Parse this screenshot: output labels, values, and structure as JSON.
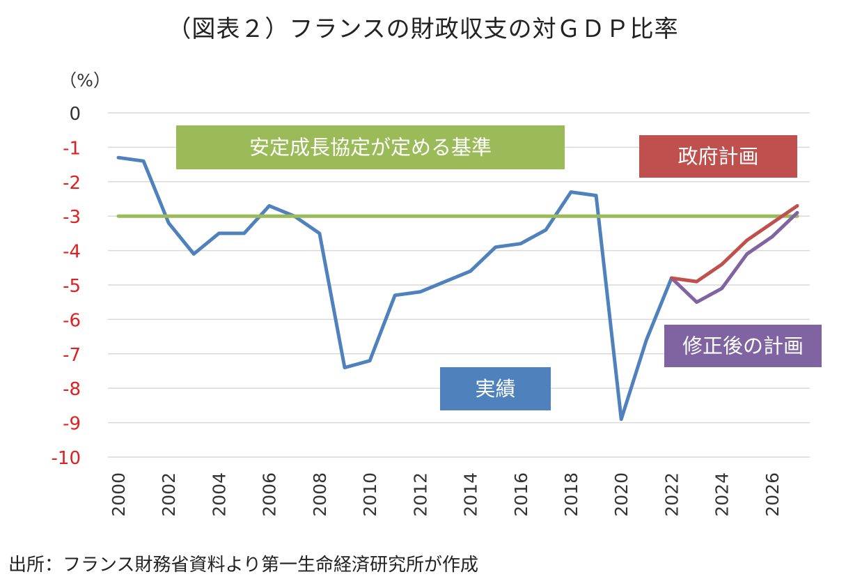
{
  "title": "（図表２）フランスの財政収支の対ＧＤＰ比率",
  "source": "出所：フランス財務省資料より第一生命経済研究所が作成",
  "chart_data": {
    "type": "line",
    "title": "（図表２）フランスの財政収支の対ＧＤＰ比率",
    "ylabel": "（%）",
    "xlabel": "",
    "ylim": [
      -10,
      0
    ],
    "xlim": [
      2000,
      2027
    ],
    "grid": true,
    "y_ticks": [
      "0",
      "-1",
      "-2",
      "-3",
      "-4",
      "-5",
      "-6",
      "-7",
      "-8",
      "-9",
      "-10"
    ],
    "x_ticks": [
      "2000",
      "2002",
      "2004",
      "2006",
      "2008",
      "2010",
      "2012",
      "2014",
      "2016",
      "2018",
      "2020",
      "2022",
      "2024",
      "2026"
    ],
    "series": [
      {
        "name": "実績",
        "color": "#4f81bd",
        "x": [
          2000,
          2001,
          2002,
          2003,
          2004,
          2005,
          2006,
          2007,
          2008,
          2009,
          2010,
          2011,
          2012,
          2013,
          2014,
          2015,
          2016,
          2017,
          2018,
          2019,
          2020,
          2021,
          2022
        ],
        "y": [
          -1.3,
          -1.4,
          -3.2,
          -4.1,
          -3.5,
          -3.5,
          -2.7,
          -3.0,
          -3.5,
          -7.4,
          -7.2,
          -5.3,
          -5.2,
          -4.9,
          -4.6,
          -3.9,
          -3.8,
          -3.4,
          -2.3,
          -2.4,
          -8.9,
          -6.6,
          -4.8
        ]
      },
      {
        "name": "安定成長協定が定める基準",
        "color": "#9bbb59",
        "x": [
          2000,
          2027
        ],
        "y": [
          -3.0,
          -3.0
        ]
      },
      {
        "name": "政府計画",
        "color": "#c0504d",
        "x": [
          2022,
          2023,
          2024,
          2025,
          2026,
          2027
        ],
        "y": [
          -4.8,
          -4.9,
          -4.4,
          -3.7,
          -3.2,
          -2.7
        ]
      },
      {
        "name": "修正後の計画",
        "color": "#8064a2",
        "x": [
          2022,
          2023,
          2024,
          2025,
          2026,
          2027
        ],
        "y": [
          -4.8,
          -5.5,
          -5.1,
          -4.1,
          -3.6,
          -2.9
        ]
      }
    ]
  }
}
